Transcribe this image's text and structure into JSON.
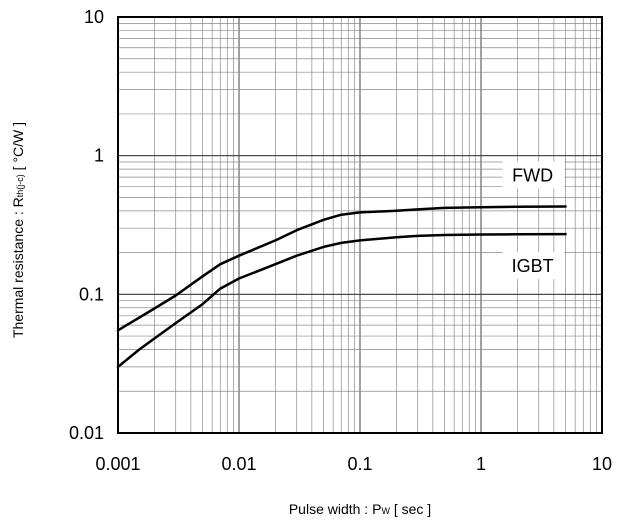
{
  "chart_data": {
    "type": "line",
    "xscale": "log",
    "yscale": "log",
    "xlim": [
      0.001,
      10
    ],
    "ylim": [
      0.01,
      10
    ],
    "grid": true,
    "x_ticks": [
      "0.001",
      "0.01",
      "0.1",
      "1",
      "10"
    ],
    "y_ticks": [
      "10",
      "1",
      "0.1",
      "0.01"
    ],
    "xlabel": {
      "main": "Pulse width  :  P",
      "sub": "W",
      "unit": " [ sec ]"
    },
    "ylabel": {
      "main": "Thermal resistance : R",
      "sub": "th(j-c)",
      "unit": " [ °C/W ]"
    },
    "series": [
      {
        "name": "FWD",
        "x": [
          0.001,
          0.002,
          0.003,
          0.005,
          0.007,
          0.01,
          0.02,
          0.03,
          0.05,
          0.07,
          0.1,
          0.2,
          0.3,
          0.5,
          1,
          2,
          5
        ],
        "y": [
          0.055,
          0.079,
          0.098,
          0.135,
          0.165,
          0.19,
          0.245,
          0.29,
          0.345,
          0.375,
          0.39,
          0.4,
          0.41,
          0.42,
          0.425,
          0.428,
          0.43
        ]
      },
      {
        "name": "IGBT",
        "x": [
          0.001,
          0.0015,
          0.002,
          0.003,
          0.005,
          0.007,
          0.01,
          0.02,
          0.03,
          0.05,
          0.07,
          0.1,
          0.2,
          0.3,
          0.5,
          1,
          2,
          5
        ],
        "y": [
          0.03,
          0.04,
          0.048,
          0.062,
          0.085,
          0.11,
          0.13,
          0.165,
          0.19,
          0.22,
          0.235,
          0.245,
          0.258,
          0.264,
          0.268,
          0.27,
          0.271,
          0.272
        ]
      }
    ]
  }
}
